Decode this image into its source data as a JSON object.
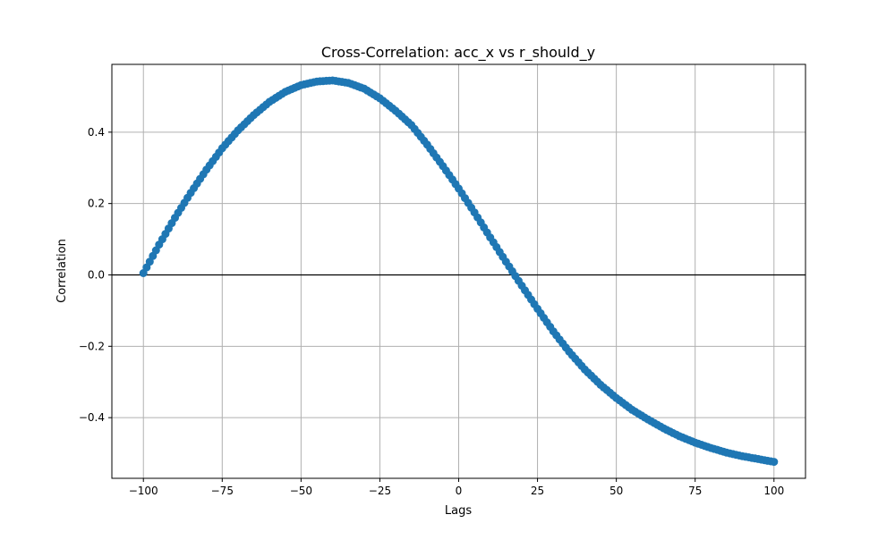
{
  "chart_data": {
    "type": "line",
    "title": "Cross-Correlation: acc_x vs r_should_y",
    "xlabel": "Lags",
    "ylabel": "Correlation",
    "xlim": [
      -110,
      110
    ],
    "ylim": [
      -0.57,
      0.59
    ],
    "x_ticks": [
      -100,
      -75,
      -50,
      -25,
      0,
      25,
      50,
      75,
      100
    ],
    "x_tick_labels": [
      "−100",
      "−75",
      "−50",
      "−25",
      "0",
      "25",
      "50",
      "75",
      "100"
    ],
    "y_ticks": [
      -0.4,
      -0.2,
      0.0,
      0.2,
      0.4
    ],
    "y_tick_labels": [
      "−0.4",
      "−0.2",
      "0.0",
      "0.2",
      "0.4"
    ],
    "grid": true,
    "zero_line": 0.0,
    "marker": "circle",
    "colors": {
      "series": "#1f77b4",
      "grid": "#b0b0b0",
      "zero_line": "#000000",
      "axes": "#000000"
    },
    "series": [
      {
        "x": [
          -100,
          -95,
          -90,
          -85,
          -80,
          -75,
          -70,
          -65,
          -60,
          -55,
          -50,
          -45,
          -40,
          -35,
          -30,
          -25,
          -20,
          -15,
          -10,
          -5,
          0,
          5,
          10,
          15,
          20,
          25,
          30,
          35,
          40,
          45,
          50,
          55,
          60,
          65,
          70,
          75,
          80,
          85,
          90,
          95,
          100
        ],
        "values": [
          0.005,
          0.085,
          0.16,
          0.23,
          0.295,
          0.355,
          0.405,
          0.448,
          0.485,
          0.513,
          0.532,
          0.542,
          0.545,
          0.538,
          0.522,
          0.495,
          0.46,
          0.42,
          0.365,
          0.305,
          0.242,
          0.175,
          0.105,
          0.037,
          -0.03,
          -0.095,
          -0.158,
          -0.215,
          -0.265,
          -0.308,
          -0.345,
          -0.378,
          -0.405,
          -0.43,
          -0.452,
          -0.47,
          -0.485,
          -0.498,
          -0.508,
          -0.516,
          -0.524
        ]
      }
    ]
  }
}
